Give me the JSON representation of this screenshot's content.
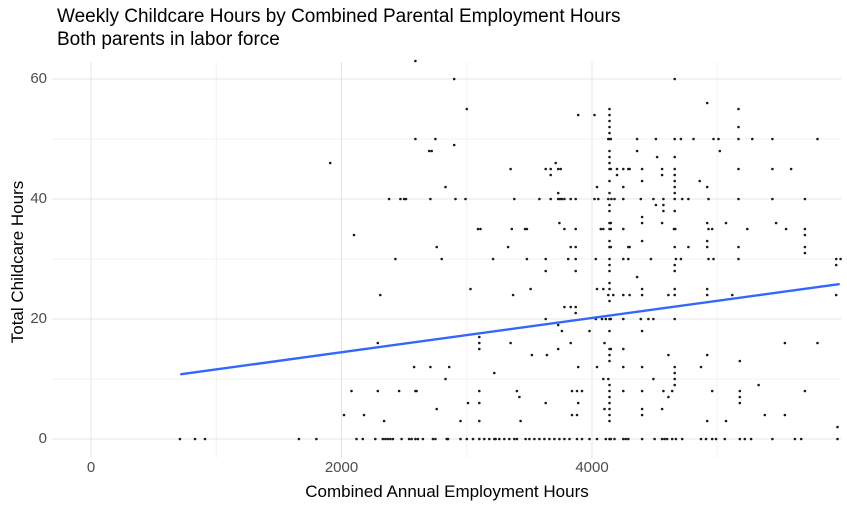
{
  "title": "Weekly Childcare Hours by Combined Parental Employment Hours",
  "subtitle": "Both parents in labor force",
  "chart_data": {
    "type": "scatter",
    "title": "Weekly Childcare Hours by Combined Parental Employment Hours",
    "subtitle": "Both parents in labor force",
    "xlabel": "Combined Annual Employment Hours",
    "ylabel": "Total Childcare Hours",
    "xlim": [
      -310,
      5990
    ],
    "ylim": [
      -3.2,
      62.8
    ],
    "x_ticks": [
      0,
      2000,
      4000
    ],
    "x_minor": [
      1000,
      3000,
      5000
    ],
    "y_ticks": [
      0,
      20,
      40,
      60
    ],
    "y_minor": [
      10,
      30,
      50
    ],
    "grid": true,
    "legend": false,
    "colors": {
      "grid_major": "#e4e4e4",
      "grid_minor": "#f2f2f2",
      "axis_text": "#4d4d4d",
      "point": "#1a1a1a",
      "trend": "#3366FF"
    },
    "trend": {
      "type": "linear",
      "x": [
        720,
        5970
      ],
      "y": [
        10.8,
        25.8
      ]
    },
    "points": [
      [
        2590,
        63
      ],
      [
        2900,
        60
      ],
      [
        4660,
        60
      ],
      [
        4920,
        56
      ],
      [
        3000,
        55
      ],
      [
        4140,
        55
      ],
      [
        5170,
        55
      ],
      [
        3890,
        54
      ],
      [
        4020,
        54
      ],
      [
        4140,
        54
      ],
      [
        4140,
        53
      ],
      [
        4140,
        52
      ],
      [
        5170,
        52
      ],
      [
        4140,
        51
      ],
      [
        2590,
        50
      ],
      [
        2750,
        50
      ],
      [
        4130,
        50
      ],
      [
        4140,
        50
      ],
      [
        4150,
        50
      ],
      [
        4360,
        50
      ],
      [
        4510,
        50
      ],
      [
        4660,
        50
      ],
      [
        4710,
        50
      ],
      [
        4810,
        50
      ],
      [
        4970,
        50
      ],
      [
        5010,
        50
      ],
      [
        5170,
        50
      ],
      [
        5280,
        50
      ],
      [
        5440,
        50
      ],
      [
        5800,
        50
      ],
      [
        2900,
        49
      ],
      [
        2700,
        48
      ],
      [
        2720,
        48
      ],
      [
        4140,
        48
      ],
      [
        4360,
        48
      ],
      [
        5020,
        48
      ],
      [
        4140,
        47
      ],
      [
        4520,
        47
      ],
      [
        4660,
        47
      ],
      [
        1910,
        46
      ],
      [
        3710,
        46
      ],
      [
        4140,
        46
      ],
      [
        3350,
        45
      ],
      [
        3630,
        45
      ],
      [
        3670,
        45
      ],
      [
        3730,
        45
      ],
      [
        3750,
        45
      ],
      [
        4140,
        45
      ],
      [
        4150,
        45
      ],
      [
        4200,
        45
      ],
      [
        4250,
        45
      ],
      [
        4290,
        45
      ],
      [
        4300,
        45
      ],
      [
        4400,
        45
      ],
      [
        4560,
        45
      ],
      [
        4660,
        45
      ],
      [
        5170,
        45
      ],
      [
        5440,
        45
      ],
      [
        5590,
        45
      ],
      [
        3670,
        44
      ],
      [
        4200,
        44
      ],
      [
        4560,
        44
      ],
      [
        4660,
        44
      ],
      [
        4140,
        43
      ],
      [
        4400,
        43
      ],
      [
        4660,
        43
      ],
      [
        4860,
        43
      ],
      [
        2830,
        42
      ],
      [
        4040,
        42
      ],
      [
        4250,
        42
      ],
      [
        4660,
        42
      ],
      [
        4920,
        42
      ],
      [
        3730,
        41
      ],
      [
        4140,
        41
      ],
      [
        4660,
        41
      ],
      [
        2380,
        40
      ],
      [
        2470,
        40
      ],
      [
        2500,
        40
      ],
      [
        2515,
        40
      ],
      [
        2710,
        40
      ],
      [
        2910,
        40
      ],
      [
        2990,
        40
      ],
      [
        3380,
        40
      ],
      [
        3580,
        40
      ],
      [
        3670,
        40
      ],
      [
        3730,
        40
      ],
      [
        3745,
        40
      ],
      [
        3760,
        40
      ],
      [
        3780,
        40
      ],
      [
        3830,
        40
      ],
      [
        3870,
        40
      ],
      [
        4020,
        40
      ],
      [
        4050,
        40
      ],
      [
        4130,
        40
      ],
      [
        4155,
        40
      ],
      [
        4180,
        40
      ],
      [
        4250,
        40
      ],
      [
        4390,
        40
      ],
      [
        4490,
        40
      ],
      [
        4570,
        40
      ],
      [
        4660,
        40
      ],
      [
        4720,
        40
      ],
      [
        4770,
        40
      ],
      [
        4930,
        40
      ],
      [
        5170,
        40
      ],
      [
        5440,
        40
      ],
      [
        5700,
        40
      ],
      [
        4140,
        39
      ],
      [
        4510,
        39
      ],
      [
        4570,
        39
      ],
      [
        4140,
        38
      ],
      [
        4570,
        38
      ],
      [
        4660,
        38
      ],
      [
        4400,
        37
      ],
      [
        3740,
        36
      ],
      [
        4140,
        36
      ],
      [
        4150,
        36
      ],
      [
        4400,
        36
      ],
      [
        4560,
        36
      ],
      [
        4920,
        36
      ],
      [
        5070,
        36
      ],
      [
        5470,
        36
      ],
      [
        3090,
        35
      ],
      [
        3110,
        35
      ],
      [
        3360,
        35
      ],
      [
        3465,
        35
      ],
      [
        3480,
        35
      ],
      [
        3780,
        35
      ],
      [
        3870,
        35
      ],
      [
        4070,
        35
      ],
      [
        4090,
        35
      ],
      [
        4140,
        35
      ],
      [
        4150,
        35
      ],
      [
        4250,
        35
      ],
      [
        4655,
        35
      ],
      [
        4665,
        35
      ],
      [
        4930,
        35
      ],
      [
        4960,
        35
      ],
      [
        5240,
        35
      ],
      [
        5550,
        35
      ],
      [
        5700,
        35
      ],
      [
        2100,
        34
      ],
      [
        5700,
        34
      ],
      [
        4140,
        33
      ],
      [
        4400,
        33
      ],
      [
        4920,
        33
      ],
      [
        2760,
        32
      ],
      [
        3330,
        32
      ],
      [
        3830,
        32
      ],
      [
        3870,
        32
      ],
      [
        4140,
        32
      ],
      [
        4150,
        32
      ],
      [
        4290,
        32
      ],
      [
        4300,
        32
      ],
      [
        4660,
        32
      ],
      [
        4770,
        32
      ],
      [
        4920,
        32
      ],
      [
        5170,
        32
      ],
      [
        5700,
        32
      ],
      [
        5700,
        31
      ],
      [
        2430,
        30
      ],
      [
        2800,
        30
      ],
      [
        3210,
        30
      ],
      [
        3480,
        30
      ],
      [
        3630,
        30
      ],
      [
        3810,
        30
      ],
      [
        3870,
        30
      ],
      [
        4030,
        30
      ],
      [
        4140,
        30
      ],
      [
        4250,
        30
      ],
      [
        4290,
        30
      ],
      [
        4470,
        30
      ],
      [
        4670,
        30
      ],
      [
        4710,
        30
      ],
      [
        4930,
        30
      ],
      [
        4970,
        30
      ],
      [
        5170,
        30
      ],
      [
        5950,
        30
      ],
      [
        5985,
        30
      ],
      [
        4140,
        29
      ],
      [
        4660,
        29
      ],
      [
        5950,
        29
      ],
      [
        3630,
        28
      ],
      [
        3870,
        28
      ],
      [
        4140,
        28
      ],
      [
        4660,
        28
      ],
      [
        4360,
        27
      ],
      [
        4140,
        26
      ],
      [
        3030,
        25
      ],
      [
        3510,
        25
      ],
      [
        4040,
        25
      ],
      [
        4090,
        25
      ],
      [
        4140,
        25
      ],
      [
        4400,
        25
      ],
      [
        4660,
        25
      ],
      [
        4920,
        25
      ],
      [
        2310,
        24
      ],
      [
        3370,
        24
      ],
      [
        4130,
        24
      ],
      [
        4170,
        24
      ],
      [
        4250,
        24
      ],
      [
        4300,
        24
      ],
      [
        4400,
        24
      ],
      [
        4610,
        24
      ],
      [
        4660,
        24
      ],
      [
        4920,
        24
      ],
      [
        5120,
        24
      ],
      [
        5950,
        24
      ],
      [
        4140,
        23
      ],
      [
        3780,
        22
      ],
      [
        3830,
        22
      ],
      [
        3870,
        22
      ],
      [
        3870,
        21
      ],
      [
        3630,
        20
      ],
      [
        4030,
        20
      ],
      [
        4080,
        20
      ],
      [
        4110,
        20
      ],
      [
        4140,
        20
      ],
      [
        4150,
        20
      ],
      [
        4250,
        20
      ],
      [
        4390,
        20
      ],
      [
        4450,
        20
      ],
      [
        4490,
        20
      ],
      [
        4660,
        20
      ],
      [
        3730,
        19
      ],
      [
        3760,
        18
      ],
      [
        3980,
        18
      ],
      [
        4140,
        18
      ],
      [
        4400,
        18
      ],
      [
        3100,
        17
      ],
      [
        2290,
        16
      ],
      [
        3100,
        16
      ],
      [
        3350,
        16
      ],
      [
        3830,
        16
      ],
      [
        4100,
        16
      ],
      [
        5540,
        16
      ],
      [
        5800,
        16
      ],
      [
        3100,
        15
      ],
      [
        3730,
        15
      ],
      [
        4140,
        15
      ],
      [
        4150,
        15
      ],
      [
        4250,
        15
      ],
      [
        3520,
        14
      ],
      [
        3640,
        14
      ],
      [
        4140,
        14
      ],
      [
        4610,
        14
      ],
      [
        4920,
        14
      ],
      [
        4140,
        13
      ],
      [
        5180,
        13
      ],
      [
        2580,
        12
      ],
      [
        2710,
        12
      ],
      [
        2860,
        12
      ],
      [
        3890,
        12
      ],
      [
        4040,
        12
      ],
      [
        4250,
        12
      ],
      [
        4400,
        12
      ],
      [
        4660,
        12
      ],
      [
        4870,
        12
      ],
      [
        3220,
        11
      ],
      [
        4660,
        11
      ],
      [
        2830,
        10
      ],
      [
        4090,
        10
      ],
      [
        4130,
        10
      ],
      [
        4490,
        10
      ],
      [
        4660,
        10
      ],
      [
        4140,
        9
      ],
      [
        4660,
        9
      ],
      [
        5330,
        9
      ],
      [
        2080,
        8
      ],
      [
        2290,
        8
      ],
      [
        2460,
        8
      ],
      [
        2590,
        8
      ],
      [
        2600,
        8
      ],
      [
        3100,
        8
      ],
      [
        3400,
        8
      ],
      [
        3840,
        8
      ],
      [
        3880,
        8
      ],
      [
        3920,
        8
      ],
      [
        4140,
        8
      ],
      [
        4250,
        8
      ],
      [
        4400,
        8
      ],
      [
        4570,
        8
      ],
      [
        4640,
        8
      ],
      [
        4960,
        8
      ],
      [
        5180,
        8
      ],
      [
        5700,
        8
      ],
      [
        3420,
        7
      ],
      [
        4140,
        7
      ],
      [
        4610,
        7
      ],
      [
        5180,
        7
      ],
      [
        3010,
        6
      ],
      [
        3100,
        6
      ],
      [
        3630,
        6
      ],
      [
        3890,
        6
      ],
      [
        4140,
        6
      ],
      [
        5180,
        6
      ],
      [
        2760,
        5
      ],
      [
        4100,
        5
      ],
      [
        4140,
        5
      ],
      [
        4400,
        5
      ],
      [
        4560,
        5
      ],
      [
        2020,
        4
      ],
      [
        2180,
        4
      ],
      [
        3840,
        4
      ],
      [
        3880,
        4
      ],
      [
        4140,
        4
      ],
      [
        4400,
        4
      ],
      [
        5380,
        4
      ],
      [
        5540,
        4
      ],
      [
        2340,
        3
      ],
      [
        2950,
        3
      ],
      [
        3100,
        3
      ],
      [
        3430,
        3
      ],
      [
        4140,
        3
      ],
      [
        4920,
        3
      ],
      [
        5070,
        3
      ],
      [
        5960,
        2
      ],
      [
        710,
        0
      ],
      [
        830,
        0
      ],
      [
        910,
        0
      ],
      [
        1660,
        0
      ],
      [
        1800,
        0
      ],
      [
        2120,
        0
      ],
      [
        2170,
        0
      ],
      [
        2270,
        0
      ],
      [
        2330,
        0
      ],
      [
        2350,
        0
      ],
      [
        2370,
        0
      ],
      [
        2390,
        0
      ],
      [
        2410,
        0
      ],
      [
        2480,
        0
      ],
      [
        2540,
        0
      ],
      [
        2560,
        0
      ],
      [
        2590,
        0
      ],
      [
        2610,
        0
      ],
      [
        2650,
        0
      ],
      [
        2730,
        0
      ],
      [
        2750,
        0
      ],
      [
        2840,
        0
      ],
      [
        2850,
        0
      ],
      [
        2950,
        0
      ],
      [
        3000,
        0
      ],
      [
        3050,
        0
      ],
      [
        3100,
        0
      ],
      [
        3140,
        0
      ],
      [
        3180,
        0
      ],
      [
        3220,
        0
      ],
      [
        3230,
        0
      ],
      [
        3260,
        0
      ],
      [
        3300,
        0
      ],
      [
        3340,
        0
      ],
      [
        3380,
        0
      ],
      [
        3400,
        0
      ],
      [
        3470,
        0
      ],
      [
        3500,
        0
      ],
      [
        3540,
        0
      ],
      [
        3580,
        0
      ],
      [
        3620,
        0
      ],
      [
        3660,
        0
      ],
      [
        3700,
        0
      ],
      [
        3740,
        0
      ],
      [
        3780,
        0
      ],
      [
        3820,
        0
      ],
      [
        3880,
        0
      ],
      [
        3920,
        0
      ],
      [
        3980,
        0
      ],
      [
        4040,
        0
      ],
      [
        4110,
        0
      ],
      [
        4140,
        0
      ],
      [
        4150,
        0
      ],
      [
        4180,
        0
      ],
      [
        4250,
        0
      ],
      [
        4270,
        0
      ],
      [
        4290,
        0
      ],
      [
        4400,
        0
      ],
      [
        4500,
        0
      ],
      [
        4560,
        0
      ],
      [
        4580,
        0
      ],
      [
        4600,
        0
      ],
      [
        4640,
        0
      ],
      [
        4670,
        0
      ],
      [
        4720,
        0
      ],
      [
        4870,
        0
      ],
      [
        4910,
        0
      ],
      [
        4960,
        0
      ],
      [
        4990,
        0
      ],
      [
        5060,
        0
      ],
      [
        5180,
        0
      ],
      [
        5220,
        0
      ],
      [
        5270,
        0
      ],
      [
        5440,
        0
      ],
      [
        5620,
        0
      ],
      [
        5670,
        0
      ],
      [
        5960,
        0
      ]
    ]
  }
}
